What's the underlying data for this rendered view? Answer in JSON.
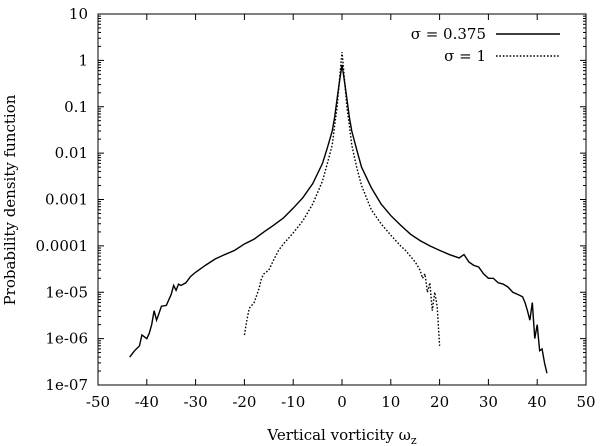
{
  "chart_data": {
    "type": "line",
    "title": "",
    "xlabel": "Vertical vorticity ω_z",
    "ylabel": "Probability density function",
    "xlim": [
      -50,
      50
    ],
    "ylim": [
      1e-07,
      10
    ],
    "yscale": "log",
    "x_ticks": [
      -50,
      -40,
      -30,
      -20,
      -10,
      0,
      10,
      20,
      30,
      40,
      50
    ],
    "x_tick_labels": [
      "-50",
      "-40",
      "-30",
      "-20",
      "-10",
      "0",
      "10",
      "20",
      "30",
      "40",
      "50"
    ],
    "y_ticks": [
      1e-07,
      1e-06,
      1e-05,
      0.0001,
      0.001,
      0.01,
      0.1,
      1,
      10
    ],
    "y_tick_labels": [
      "1e-07",
      "1e-06",
      "1e-05",
      "0.0001",
      "0.001",
      "0.01",
      "0.1",
      "1",
      "10"
    ],
    "grid": false,
    "legend_position": "top-right",
    "series": [
      {
        "name": "σ = 0.375",
        "style": "solid",
        "x": [
          -43.5,
          -42.5,
          -41.5,
          -41,
          -40,
          -39.5,
          -39,
          -38.5,
          -38,
          -37.5,
          -37,
          -36,
          -35,
          -34.5,
          -34,
          -33.5,
          -33,
          -32,
          -31,
          -30,
          -28,
          -26,
          -24,
          -22,
          -20,
          -18,
          -16,
          -14,
          -12,
          -10,
          -8,
          -6,
          -4,
          -3,
          -2,
          -1.5,
          -1,
          -0.6,
          -0.3,
          0,
          0.3,
          0.6,
          1,
          1.5,
          2,
          3,
          4,
          6,
          8,
          10,
          12,
          14,
          16,
          18,
          20,
          22,
          24,
          25,
          26,
          27,
          28,
          29,
          30,
          31,
          32,
          33,
          34,
          35,
          36,
          37,
          37.5,
          38,
          38.5,
          39,
          39.5,
          40,
          40.5,
          41,
          41.5,
          42
        ],
        "y": [
          4e-07,
          5.5e-07,
          7e-07,
          1.2e-06,
          1e-06,
          1.3e-06,
          2e-06,
          4e-06,
          2.5e-06,
          3.5e-06,
          5e-06,
          5.2e-06,
          9e-06,
          1.4e-05,
          1.1e-05,
          1.5e-05,
          1.4e-05,
          1.6e-05,
          2.2e-05,
          2.7e-05,
          3.8e-05,
          5.2e-05,
          6.5e-05,
          8e-05,
          0.00011,
          0.00014,
          0.0002,
          0.00028,
          0.0004,
          0.00065,
          0.0011,
          0.0022,
          0.006,
          0.013,
          0.03,
          0.06,
          0.15,
          0.3,
          0.5,
          0.8,
          0.5,
          0.3,
          0.15,
          0.06,
          0.03,
          0.012,
          0.005,
          0.0018,
          0.0008,
          0.00045,
          0.00028,
          0.00018,
          0.00013,
          0.0001,
          8e-05,
          6.5e-05,
          5.5e-05,
          6.5e-05,
          4.5e-05,
          3.8e-05,
          3.5e-05,
          2.5e-05,
          2e-05,
          2e-05,
          1.6e-05,
          1.5e-05,
          1.3e-05,
          1e-05,
          9e-06,
          8e-06,
          6e-06,
          4e-06,
          2.5e-06,
          6e-06,
          1e-06,
          2e-06,
          5.5e-07,
          6e-07,
          3e-07,
          1.8e-07
        ]
      },
      {
        "name": "σ = 1",
        "style": "dotted",
        "x": [
          -20,
          -19.5,
          -19,
          -18,
          -17,
          -16.5,
          -16,
          -15,
          -14,
          -13,
          -12,
          -10,
          -8,
          -6,
          -4,
          -3,
          -2,
          -1.5,
          -1,
          -0.6,
          -0.3,
          0,
          0.3,
          0.6,
          1,
          1.5,
          2,
          3,
          4,
          6,
          8,
          10,
          12,
          13,
          14,
          15,
          16,
          16.5,
          17,
          17.5,
          18,
          18.5,
          19,
          19.5,
          20
        ],
        "y": [
          1.2e-06,
          2.5e-06,
          4.5e-06,
          6e-06,
          1.2e-05,
          2e-05,
          2.5e-05,
          3e-05,
          5e-05,
          8e-05,
          0.00011,
          0.00019,
          0.00035,
          0.0008,
          0.0025,
          0.006,
          0.015,
          0.04,
          0.1,
          0.3,
          0.7,
          1.5,
          0.7,
          0.3,
          0.1,
          0.04,
          0.015,
          0.005,
          0.002,
          0.0006,
          0.0003,
          0.00017,
          0.0001,
          8e-05,
          6e-05,
          4.5e-05,
          3e-05,
          2e-05,
          2.5e-05,
          1e-05,
          1.6e-05,
          4e-06,
          1e-05,
          5e-06,
          7e-07
        ]
      }
    ]
  }
}
